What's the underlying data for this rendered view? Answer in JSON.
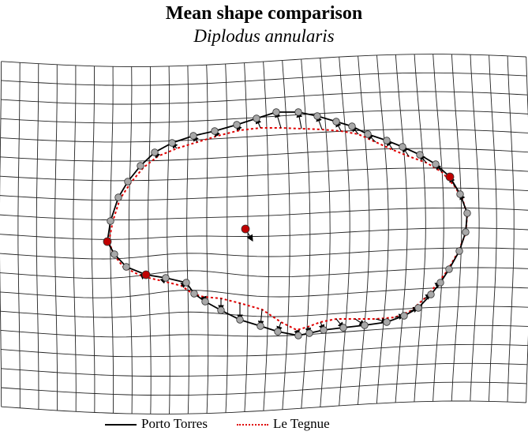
{
  "figure": {
    "title": "Mean shape comparison",
    "subtitle": "Diplodus annularis"
  },
  "legend": {
    "porto_torres": "Porto Torres",
    "le_tegnue": "Le Tegnue"
  },
  "colors": {
    "porto_torres_line": "#000000",
    "le_tegnue_line": "#e00000",
    "landmark_fixed": "#c00000",
    "semilandmark": "#a8a8a8",
    "grid": "#222222"
  },
  "icons": {
    "landmark": "landmark-dot-icon",
    "vector": "displacement-arrow-icon"
  }
}
